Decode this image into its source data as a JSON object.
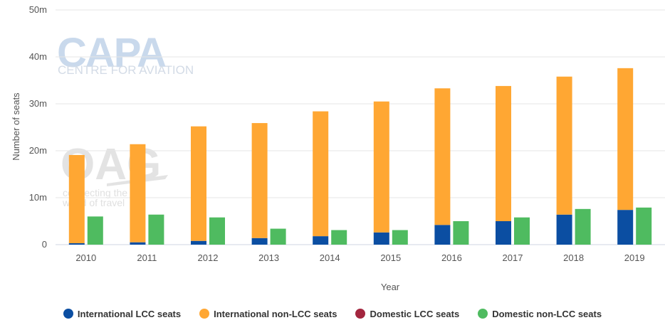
{
  "chart_data": {
    "type": "bar",
    "categories": [
      "2010",
      "2011",
      "2012",
      "2013",
      "2014",
      "2015",
      "2016",
      "2017",
      "2018",
      "2019"
    ],
    "xlabel": "Year",
    "ylabel": "Number of seats",
    "ylim": [
      0,
      50
    ],
    "yticks": [
      "0",
      "10m",
      "20m",
      "30m",
      "40m",
      "50m"
    ],
    "grid": true,
    "legend_position": "bottom",
    "series": [
      {
        "name": "International LCC seats",
        "stack": "international",
        "color": "#0b4ea2",
        "values": [
          0.3,
          0.5,
          0.8,
          1.4,
          1.8,
          2.6,
          4.2,
          5.0,
          6.4,
          7.4
        ]
      },
      {
        "name": "International non-LCC seats",
        "stack": "international",
        "color": "#ffa733",
        "values": [
          18.8,
          20.9,
          24.4,
          24.5,
          26.6,
          27.9,
          29.1,
          28.8,
          29.4,
          30.2
        ]
      },
      {
        "name": "Domestic LCC seats",
        "stack": "domestic",
        "color": "#a3263f",
        "values": [
          0,
          0,
          0,
          0,
          0,
          0,
          0,
          0,
          0,
          0
        ]
      },
      {
        "name": "Domestic non-LCC seats",
        "stack": "domestic",
        "color": "#4fbb60",
        "values": [
          6.0,
          6.4,
          5.8,
          3.4,
          3.1,
          3.1,
          5.0,
          5.8,
          7.6,
          7.9
        ]
      }
    ]
  },
  "watermarks": {
    "capa_logo": "CAPA",
    "capa_tagline": "CENTRE FOR AVIATION",
    "oag_logo": "OAG",
    "oag_tagline_1": "connecting the",
    "oag_tagline_2": "world of travel"
  }
}
